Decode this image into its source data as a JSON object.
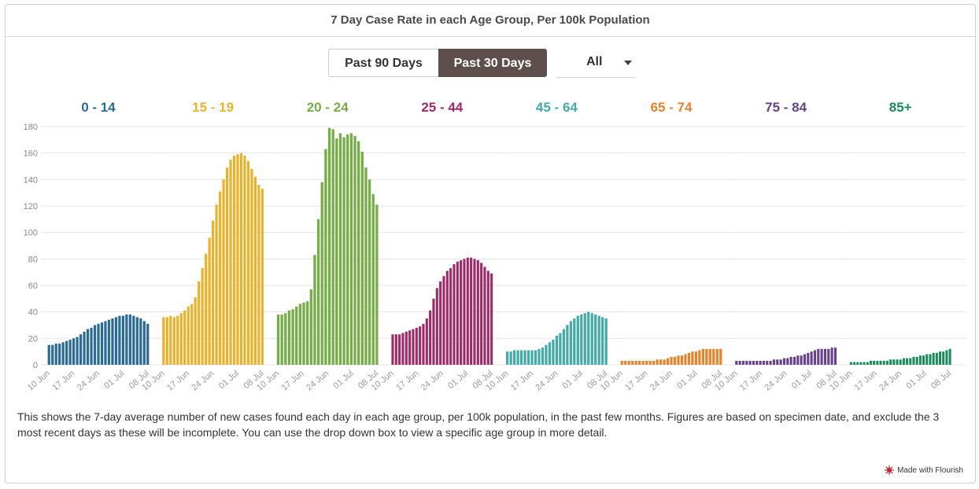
{
  "header": {
    "title": "7 Day Case Rate in each Age Group, Per 100k Population"
  },
  "controls": {
    "range_buttons": [
      {
        "label": "Past 90 Days",
        "active": false
      },
      {
        "label": "Past 30 Days",
        "active": true
      }
    ],
    "group_select": {
      "value": "All"
    }
  },
  "description": "This shows the 7-day average number of new cases found each day in each age group, per 100k population, in the past few months. Figures are based on specimen date, and exclude the 3 most recent days as these will be incomplete. You can use the drop down box to view a specific age group in more detail.",
  "footer": {
    "credit": "Made with Flourish"
  },
  "chart_data": {
    "type": "bar",
    "ylim": [
      0,
      180
    ],
    "y_ticks": [
      0,
      20,
      40,
      60,
      80,
      100,
      120,
      140,
      160,
      180
    ],
    "x_ticks": [
      "10 Jun",
      "17 Jun",
      "24 Jun",
      "01 Jul",
      "08 Jul"
    ],
    "grid": true,
    "panels": [
      {
        "label": "0 - 14",
        "color": "#2a6a96",
        "values": [
          15,
          15,
          16,
          16,
          17,
          18,
          19,
          20,
          21,
          23,
          25,
          27,
          28,
          30,
          31,
          32,
          33,
          34,
          35,
          36,
          37,
          37,
          38,
          38,
          37,
          36,
          35,
          33,
          31
        ]
      },
      {
        "label": "15 - 19",
        "color": "#e8b22c",
        "values": [
          36,
          36,
          37,
          36,
          37,
          39,
          41,
          44,
          46,
          51,
          63,
          73,
          84,
          96,
          109,
          121,
          131,
          140,
          149,
          155,
          158,
          159,
          160,
          158,
          154,
          148,
          142,
          136,
          133
        ]
      },
      {
        "label": "20 - 24",
        "color": "#76ad48",
        "values": [
          38,
          38,
          39,
          41,
          42,
          44,
          46,
          47,
          48,
          57,
          83,
          110,
          138,
          163,
          179,
          178,
          171,
          175,
          172,
          174,
          175,
          173,
          169,
          161,
          149,
          140,
          129,
          121
        ]
      },
      {
        "label": "25 - 44",
        "color": "#9c2b69",
        "values": [
          23,
          23,
          23,
          24,
          25,
          26,
          27,
          28,
          29,
          31,
          35,
          41,
          50,
          58,
          63,
          67,
          71,
          73,
          76,
          78,
          79,
          80,
          81,
          81,
          80,
          79,
          77,
          74,
          71,
          69
        ]
      },
      {
        "label": "45 - 64",
        "color": "#43aaa8",
        "values": [
          10,
          10,
          11,
          11,
          11,
          11,
          11,
          11,
          11,
          12,
          13,
          15,
          17,
          19,
          22,
          24,
          27,
          30,
          33,
          35,
          37,
          38,
          39,
          40,
          39,
          38,
          37,
          36,
          35
        ]
      },
      {
        "label": "65 - 74",
        "color": "#e6832d",
        "values": [
          3,
          3,
          3,
          3,
          3,
          3,
          3,
          3,
          3,
          3,
          4,
          4,
          4,
          5,
          6,
          6,
          7,
          7,
          8,
          9,
          10,
          10,
          11,
          12,
          12,
          12,
          12,
          12,
          12
        ]
      },
      {
        "label": "75 - 84",
        "color": "#66428c",
        "values": [
          3,
          3,
          3,
          3,
          3,
          3,
          3,
          3,
          3,
          3,
          3,
          4,
          4,
          4,
          5,
          5,
          6,
          6,
          7,
          7,
          8,
          9,
          10,
          11,
          12,
          12,
          12,
          12,
          13,
          13
        ]
      },
      {
        "label": "85+",
        "color": "#1b8b5d",
        "values": [
          2,
          2,
          2,
          2,
          2,
          2,
          3,
          3,
          3,
          3,
          3,
          3,
          4,
          4,
          4,
          4,
          5,
          5,
          5,
          6,
          6,
          7,
          7,
          8,
          8,
          9,
          9,
          10,
          10,
          11,
          12
        ]
      }
    ]
  }
}
